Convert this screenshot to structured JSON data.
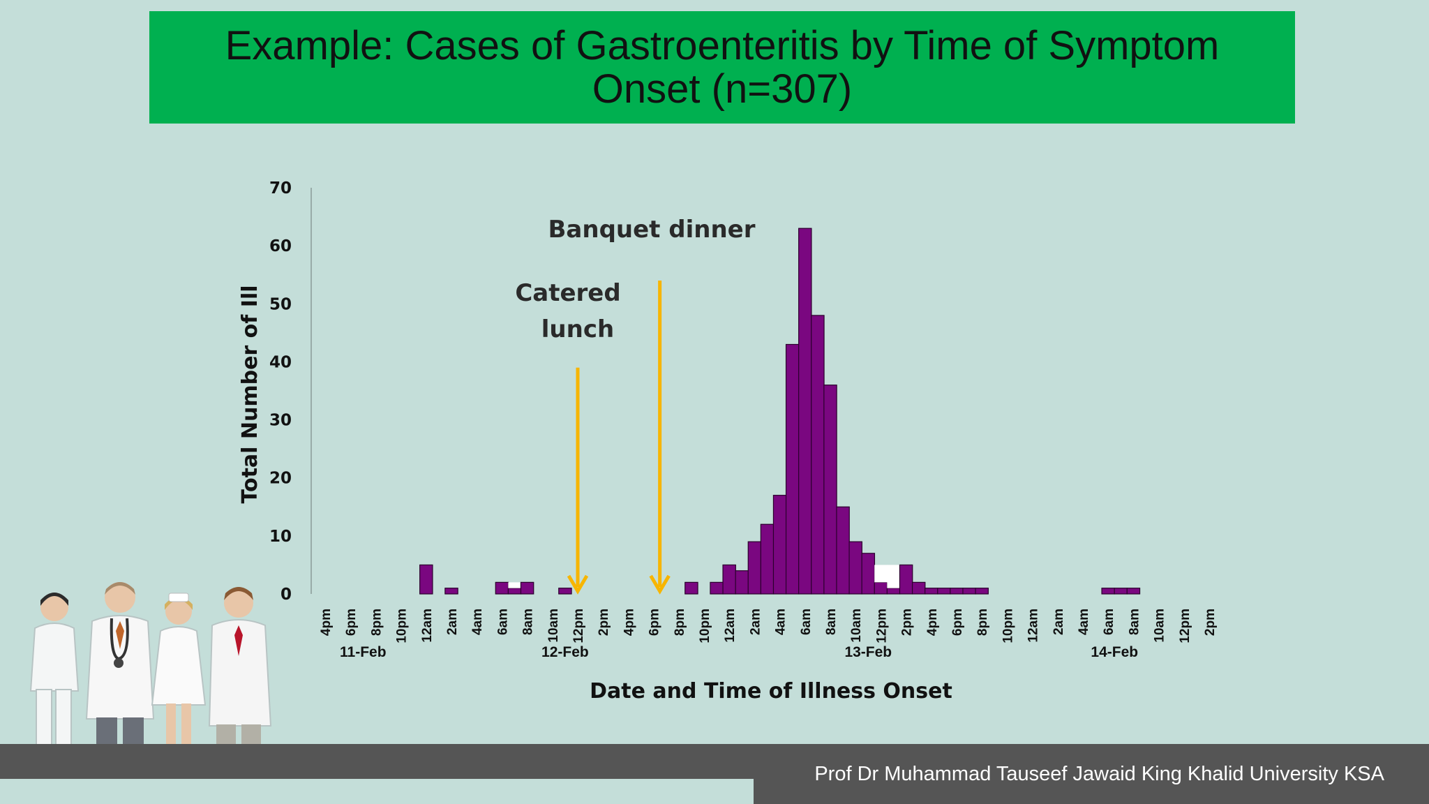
{
  "slide": {
    "title": "Example: Cases of Gastroenteritis by Time of  Symptom Onset (n=307)",
    "footer": "Prof Dr Muhammad Tauseef Jawaid King Khalid University KSA"
  },
  "colors": {
    "background": "#c4ded9",
    "title_banner": "#00b050",
    "bars": "#7a0780",
    "arrows": "#f7b500",
    "footer": "#555555"
  },
  "chart_data": {
    "type": "bar",
    "xlabel": "Date and Time of Illness Onset",
    "ylabel": "Total Number of Ill",
    "ylim": [
      0,
      70
    ],
    "yticks": [
      0,
      10,
      20,
      30,
      40,
      50,
      60,
      70
    ],
    "grid": false,
    "categories": [
      "4pm",
      "6pm",
      "8pm",
      "10pm",
      "12am",
      "2am",
      "4am",
      "6am",
      "8am",
      "10am",
      "12pm",
      "2pm",
      "4pm",
      "6pm",
      "8pm",
      "10pm",
      "12am",
      "2am",
      "4am",
      "6am",
      "8am",
      "10am",
      "12pm",
      "2pm",
      "4pm",
      "6pm",
      "8pm",
      "10pm",
      "12am",
      "2am",
      "4am",
      "6am",
      "8am",
      "10am",
      "12pm",
      "2pm"
    ],
    "days": [
      {
        "label": "11-Feb",
        "center_index": 1.5
      },
      {
        "label": "12-Feb",
        "center_index": 9.5
      },
      {
        "label": "13-Feb",
        "center_index": 21.5
      },
      {
        "label": "14-Feb",
        "center_index": 31.25
      }
    ],
    "bars": [
      {
        "x": 4.0,
        "value": 5,
        "fill": "#7a0780"
      },
      {
        "x": 5.0,
        "value": 1,
        "fill": "#7a0780"
      },
      {
        "x": 7.0,
        "value": 2,
        "fill": "#7a0780"
      },
      {
        "x": 7.5,
        "value": 1,
        "fill": "#7a0780"
      },
      {
        "x": 7.5,
        "value": 1,
        "base": 1,
        "fill": "#ffffff"
      },
      {
        "x": 8.0,
        "value": 2,
        "fill": "#7a0780"
      },
      {
        "x": 9.5,
        "value": 1,
        "fill": "#7a0780"
      },
      {
        "x": 14.5,
        "value": 2,
        "fill": "#7a0780"
      },
      {
        "x": 15.5,
        "value": 2,
        "fill": "#7a0780"
      },
      {
        "x": 16.0,
        "value": 5,
        "fill": "#7a0780"
      },
      {
        "x": 16.5,
        "value": 4,
        "fill": "#7a0780"
      },
      {
        "x": 17.0,
        "value": 9,
        "fill": "#7a0780"
      },
      {
        "x": 17.5,
        "value": 12,
        "fill": "#7a0780"
      },
      {
        "x": 18.0,
        "value": 17,
        "fill": "#7a0780"
      },
      {
        "x": 18.5,
        "value": 43,
        "fill": "#7a0780"
      },
      {
        "x": 19.0,
        "value": 63,
        "fill": "#7a0780"
      },
      {
        "x": 19.5,
        "value": 48,
        "fill": "#7a0780"
      },
      {
        "x": 20.0,
        "value": 36,
        "fill": "#7a0780"
      },
      {
        "x": 20.5,
        "value": 15,
        "fill": "#7a0780"
      },
      {
        "x": 21.0,
        "value": 9,
        "fill": "#7a0780"
      },
      {
        "x": 21.5,
        "value": 7,
        "fill": "#7a0780"
      },
      {
        "x": 22.0,
        "value": 2,
        "fill": "#7a0780"
      },
      {
        "x": 22.0,
        "value": 3,
        "base": 2,
        "fill": "#ffffff"
      },
      {
        "x": 22.5,
        "value": 1,
        "fill": "#7a0780"
      },
      {
        "x": 22.5,
        "value": 4,
        "base": 1,
        "fill": "#ffffff"
      },
      {
        "x": 23.0,
        "value": 5,
        "fill": "#7a0780"
      },
      {
        "x": 23.5,
        "value": 2,
        "fill": "#7a0780"
      },
      {
        "x": 24.0,
        "value": 1,
        "fill": "#7a0780"
      },
      {
        "x": 24.5,
        "value": 1,
        "fill": "#7a0780"
      },
      {
        "x": 25.0,
        "value": 1,
        "fill": "#7a0780"
      },
      {
        "x": 25.5,
        "value": 1,
        "fill": "#7a0780"
      },
      {
        "x": 26.0,
        "value": 1,
        "fill": "#7a0780"
      },
      {
        "x": 31.0,
        "value": 1,
        "fill": "#7a0780"
      },
      {
        "x": 31.5,
        "value": 1,
        "fill": "#7a0780"
      },
      {
        "x": 32.0,
        "value": 1,
        "fill": "#7a0780"
      }
    ],
    "annotations": [
      {
        "lines": [
          "Catered",
          "lunch"
        ],
        "arrow_x": 10.0,
        "arrow_top_value": 39
      },
      {
        "lines": [
          "Banquet dinner"
        ],
        "arrow_x": 13.25,
        "arrow_top_value": 54
      }
    ]
  }
}
